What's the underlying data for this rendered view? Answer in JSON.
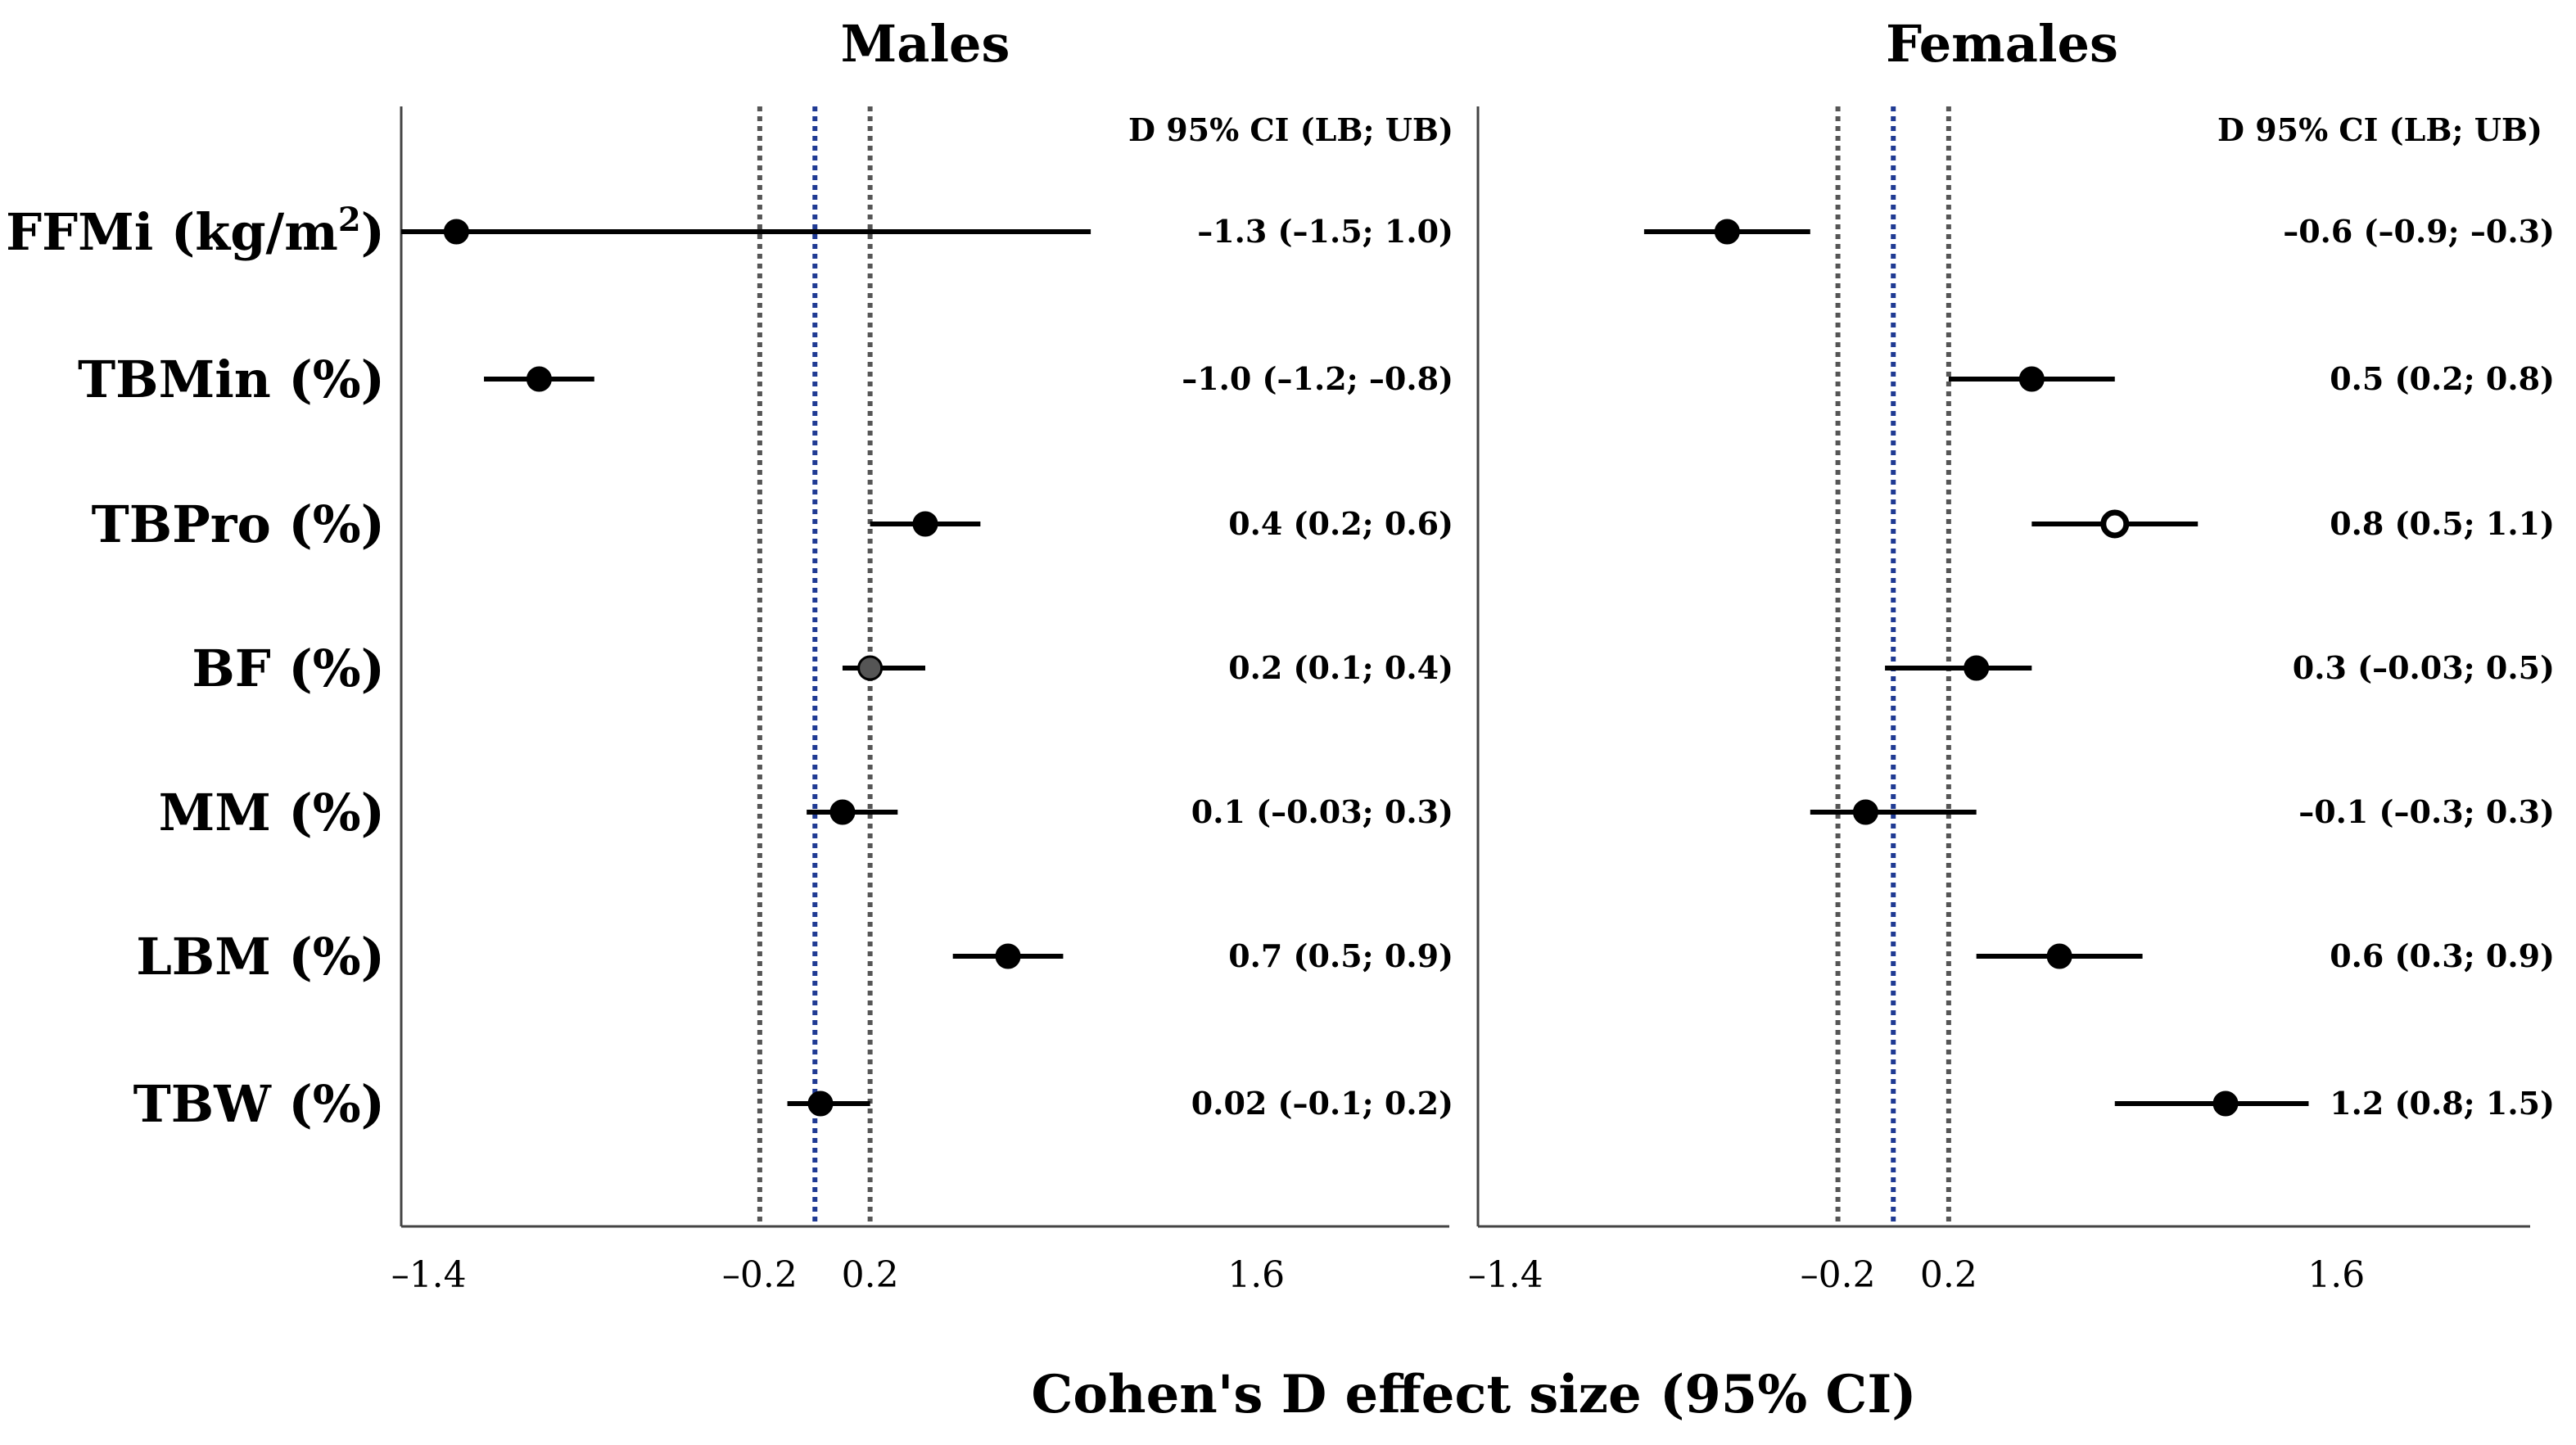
{
  "chart_data": {
    "type": "forest",
    "xlabel": "Cohen's D effect size (95% CI)",
    "xticks": [
      -1.4,
      -0.2,
      0.2,
      1.6
    ],
    "xtick_labels": [
      "–1.4",
      "–0.2",
      "0.2",
      "1.6"
    ],
    "reference_lines": [
      {
        "value": -0.2,
        "style": "dotted",
        "color": "#555555"
      },
      {
        "value": 0,
        "style": "dotted",
        "color": "#1f3a93"
      },
      {
        "value": 0.2,
        "style": "dotted",
        "color": "#555555"
      }
    ],
    "categories": [
      "FFMi (kg/m",
      "TBMin (%)",
      "TBPro (%)",
      "BF (%)",
      "MM (%)",
      "LBM (%)",
      "TBW (%)"
    ],
    "category_superscript": {
      "index": 0,
      "sup": "2",
      "suffix": ")"
    },
    "ci_header": "D 95% CI (LB; UB)",
    "panels": [
      {
        "name": "Males",
        "xlim": [
          -1.5,
          2.3
        ],
        "points": [
          {
            "label": "FFMi (kg/m2)",
            "d": -1.3,
            "lb": -1.5,
            "ub": 1.0,
            "text": "–1.3 (–1.5; 1.0)",
            "marker": "filled"
          },
          {
            "label": "TBMin (%)",
            "d": -1.0,
            "lb": -1.2,
            "ub": -0.8,
            "text": "–1.0 (–1.2; –0.8)",
            "marker": "filled"
          },
          {
            "label": "TBPro (%)",
            "d": 0.4,
            "lb": 0.2,
            "ub": 0.6,
            "text": "0.4 (0.2; 0.6)",
            "marker": "filled"
          },
          {
            "label": "BF (%)",
            "d": 0.2,
            "lb": 0.1,
            "ub": 0.4,
            "text": "0.2 (0.1; 0.4)",
            "marker": "grey"
          },
          {
            "label": "MM (%)",
            "d": 0.1,
            "lb": -0.03,
            "ub": 0.3,
            "text": "0.1 (–0.03; 0.3)",
            "marker": "filled"
          },
          {
            "label": "LBM (%)",
            "d": 0.7,
            "lb": 0.5,
            "ub": 0.9,
            "text": "0.7 (0.5; 0.9)",
            "marker": "filled"
          },
          {
            "label": "TBW (%)",
            "d": 0.02,
            "lb": -0.1,
            "ub": 0.2,
            "text": "0.02 (–0.1; 0.2)",
            "marker": "filled"
          }
        ]
      },
      {
        "name": "Females",
        "xlim": [
          -1.5,
          2.3
        ],
        "points": [
          {
            "label": "FFMi (kg/m2)",
            "d": -0.6,
            "lb": -0.9,
            "ub": -0.3,
            "text": "–0.6 (–0.9; –0.3)",
            "marker": "filled"
          },
          {
            "label": "TBMin (%)",
            "d": 0.5,
            "lb": 0.2,
            "ub": 0.8,
            "text": "0.5 (0.2; 0.8)",
            "marker": "filled"
          },
          {
            "label": "TBPro (%)",
            "d": 0.8,
            "lb": 0.5,
            "ub": 1.1,
            "text": "0.8 (0.5; 1.1)",
            "marker": "open"
          },
          {
            "label": "BF (%)",
            "d": 0.3,
            "lb": -0.03,
            "ub": 0.5,
            "text": "0.3 (–0.03; 0.5)",
            "marker": "filled"
          },
          {
            "label": "MM (%)",
            "d": -0.1,
            "lb": -0.3,
            "ub": 0.3,
            "text": "–0.1 (–0.3; 0.3)",
            "marker": "filled"
          },
          {
            "label": "LBM (%)",
            "d": 0.6,
            "lb": 0.3,
            "ub": 0.9,
            "text": "0.6 (0.3; 0.9)",
            "marker": "filled"
          },
          {
            "label": "TBW (%)",
            "d": 1.2,
            "lb": 0.8,
            "ub": 1.5,
            "text": "1.2 (0.8; 1.5)",
            "marker": "filled"
          }
        ]
      }
    ]
  }
}
